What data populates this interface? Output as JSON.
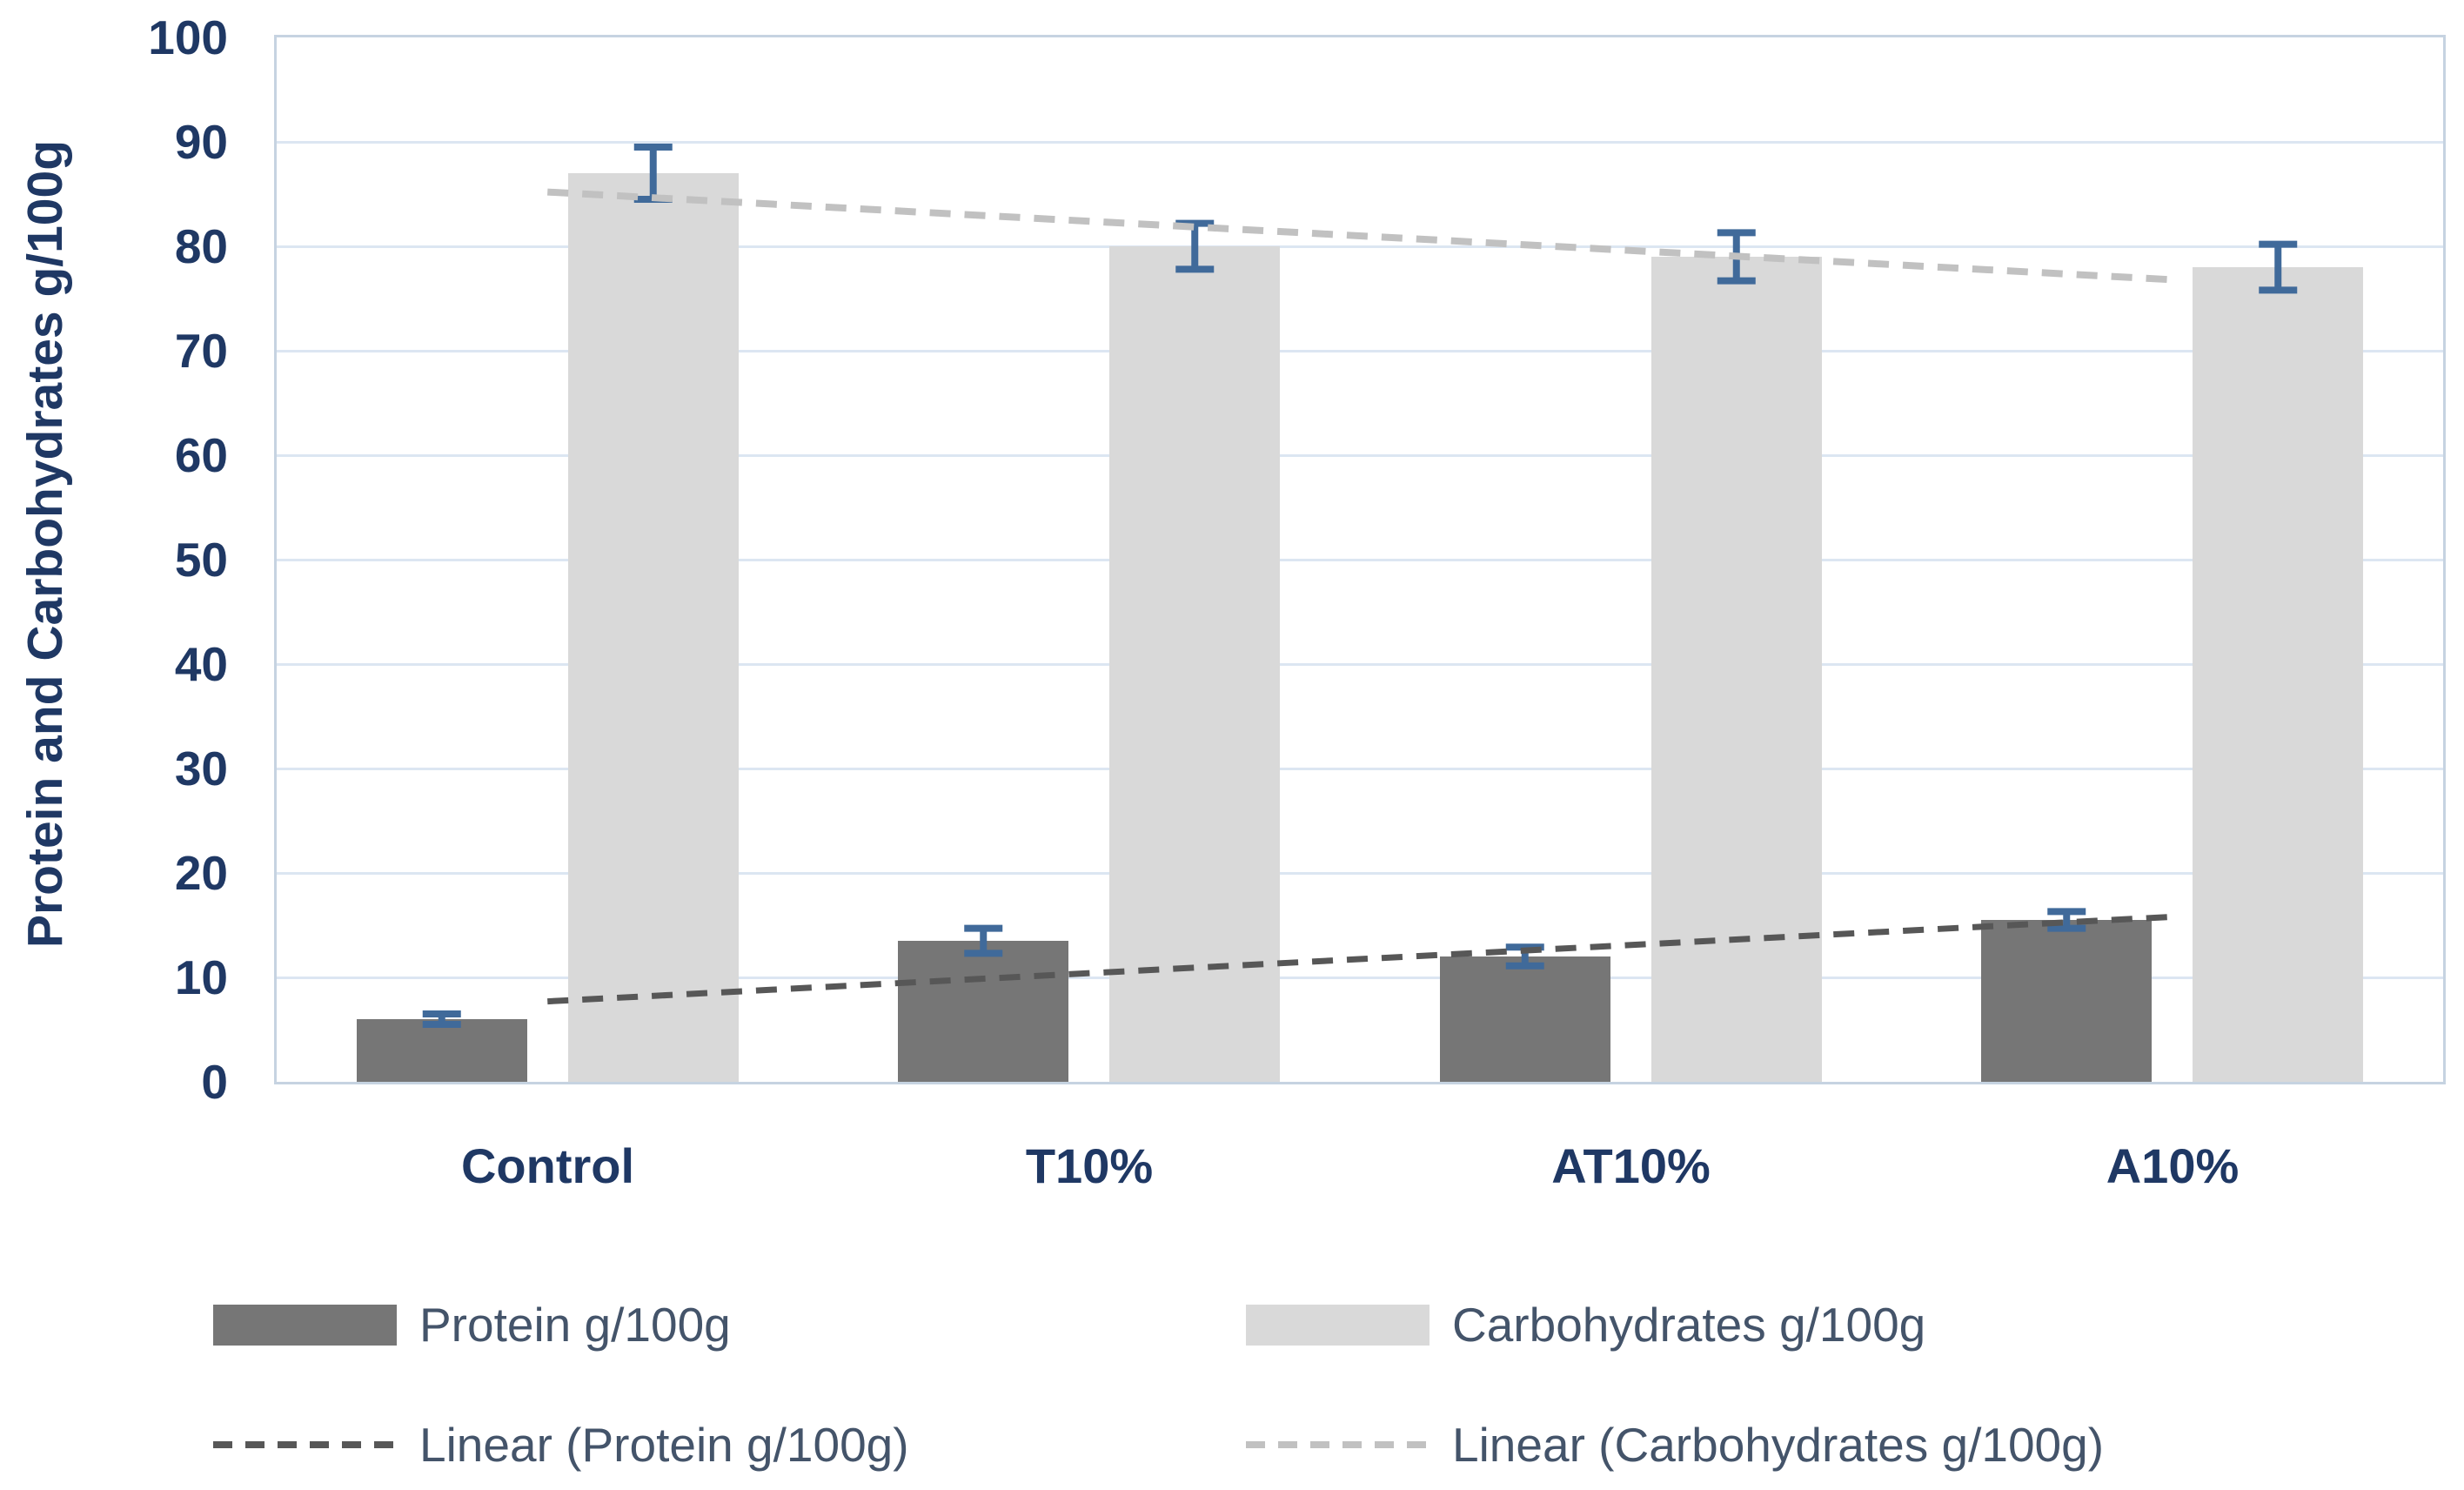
{
  "chart_data": {
    "type": "bar",
    "title": "",
    "xlabel": "",
    "ylabel": "Protein and Carbohydrates g/100g",
    "categories": [
      "Control",
      "T10%",
      "AT10%",
      "A10%"
    ],
    "series": [
      {
        "name": "Protein g/100g",
        "color": "#767676",
        "values": [
          6,
          13.5,
          12,
          15.5
        ],
        "errors": [
          0.5,
          1.2,
          0.9,
          0.8
        ]
      },
      {
        "name": "Carbohydrates g/100g",
        "color": "#d9d9d9",
        "values": [
          87,
          80,
          79,
          78
        ],
        "errors": [
          2.5,
          2.2,
          2.3,
          2.2
        ]
      }
    ],
    "trendlines": [
      {
        "name": "Linear (Protein g/100g)",
        "color": "#575757",
        "start": 7.7,
        "end": 15.8
      },
      {
        "name": "Linear (Carbohydrates g/100g)",
        "color": "#c1c1c1",
        "start": 85.2,
        "end": 76.8
      }
    ],
    "ylim": [
      0,
      100
    ],
    "ytick_step": 10,
    "yticks": [
      "0",
      "10",
      "20",
      "30",
      "40",
      "50",
      "60",
      "70",
      "80",
      "90",
      "100"
    ],
    "grid": "horizontal-only",
    "legend_position": "bottom",
    "colors": {
      "axis_text": "#1f3864",
      "legend_text": "#44546a",
      "gridline": "#dce6f2",
      "plot_border": "#c6d3e1",
      "error_bar": "#406a9a"
    }
  }
}
